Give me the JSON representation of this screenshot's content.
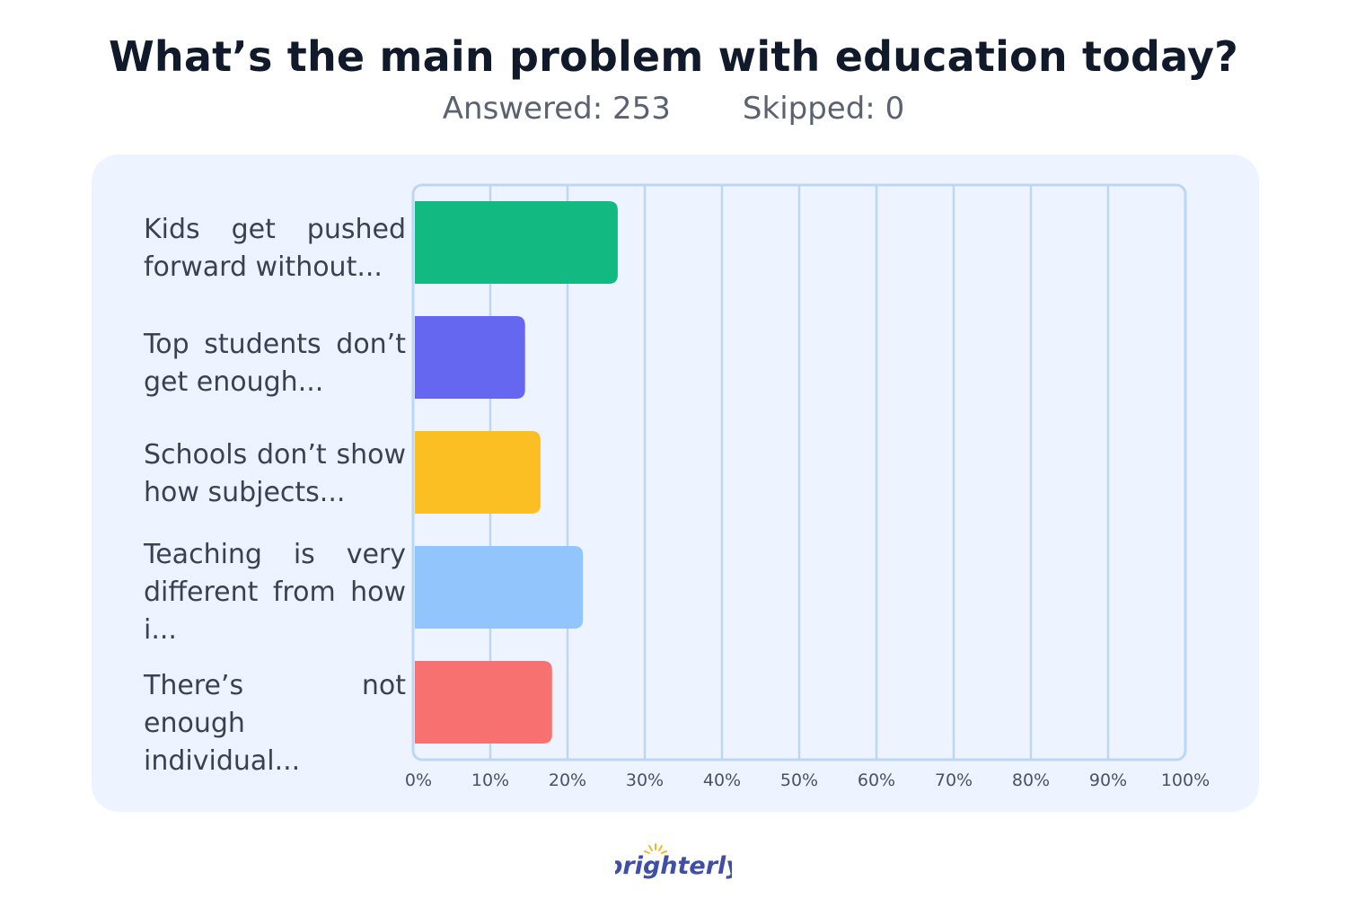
{
  "header": {
    "title": "What’s the main problem with education today?",
    "answered": "Answered: 253",
    "skipped": "Skipped: 0"
  },
  "brand": {
    "name": "Brighterly",
    "color": "#3f4ea6",
    "accent": "#f5b81c"
  },
  "chart_data": {
    "type": "bar",
    "orientation": "horizontal",
    "categories": [
      "Kids get pushed forward without...",
      "Top students don’t get enough...",
      "Schools don’t show how subjects...",
      "Teaching is very different from how i...",
      "There’s not enough individual..."
    ],
    "values": [
      26.5,
      14.5,
      16.5,
      22,
      18
    ],
    "unit": "%",
    "colors": [
      "#12b981",
      "#6667f1",
      "#fbbf24",
      "#93c5fd",
      "#f87171"
    ],
    "xlim": [
      0,
      100
    ],
    "xticks": [
      "0%",
      "10%",
      "20%",
      "30%",
      "40%",
      "50%",
      "60%",
      "70%",
      "80%",
      "90%",
      "100%"
    ],
    "grid": true,
    "title": "What’s the main problem with education today?",
    "xlabel": "",
    "ylabel": ""
  }
}
